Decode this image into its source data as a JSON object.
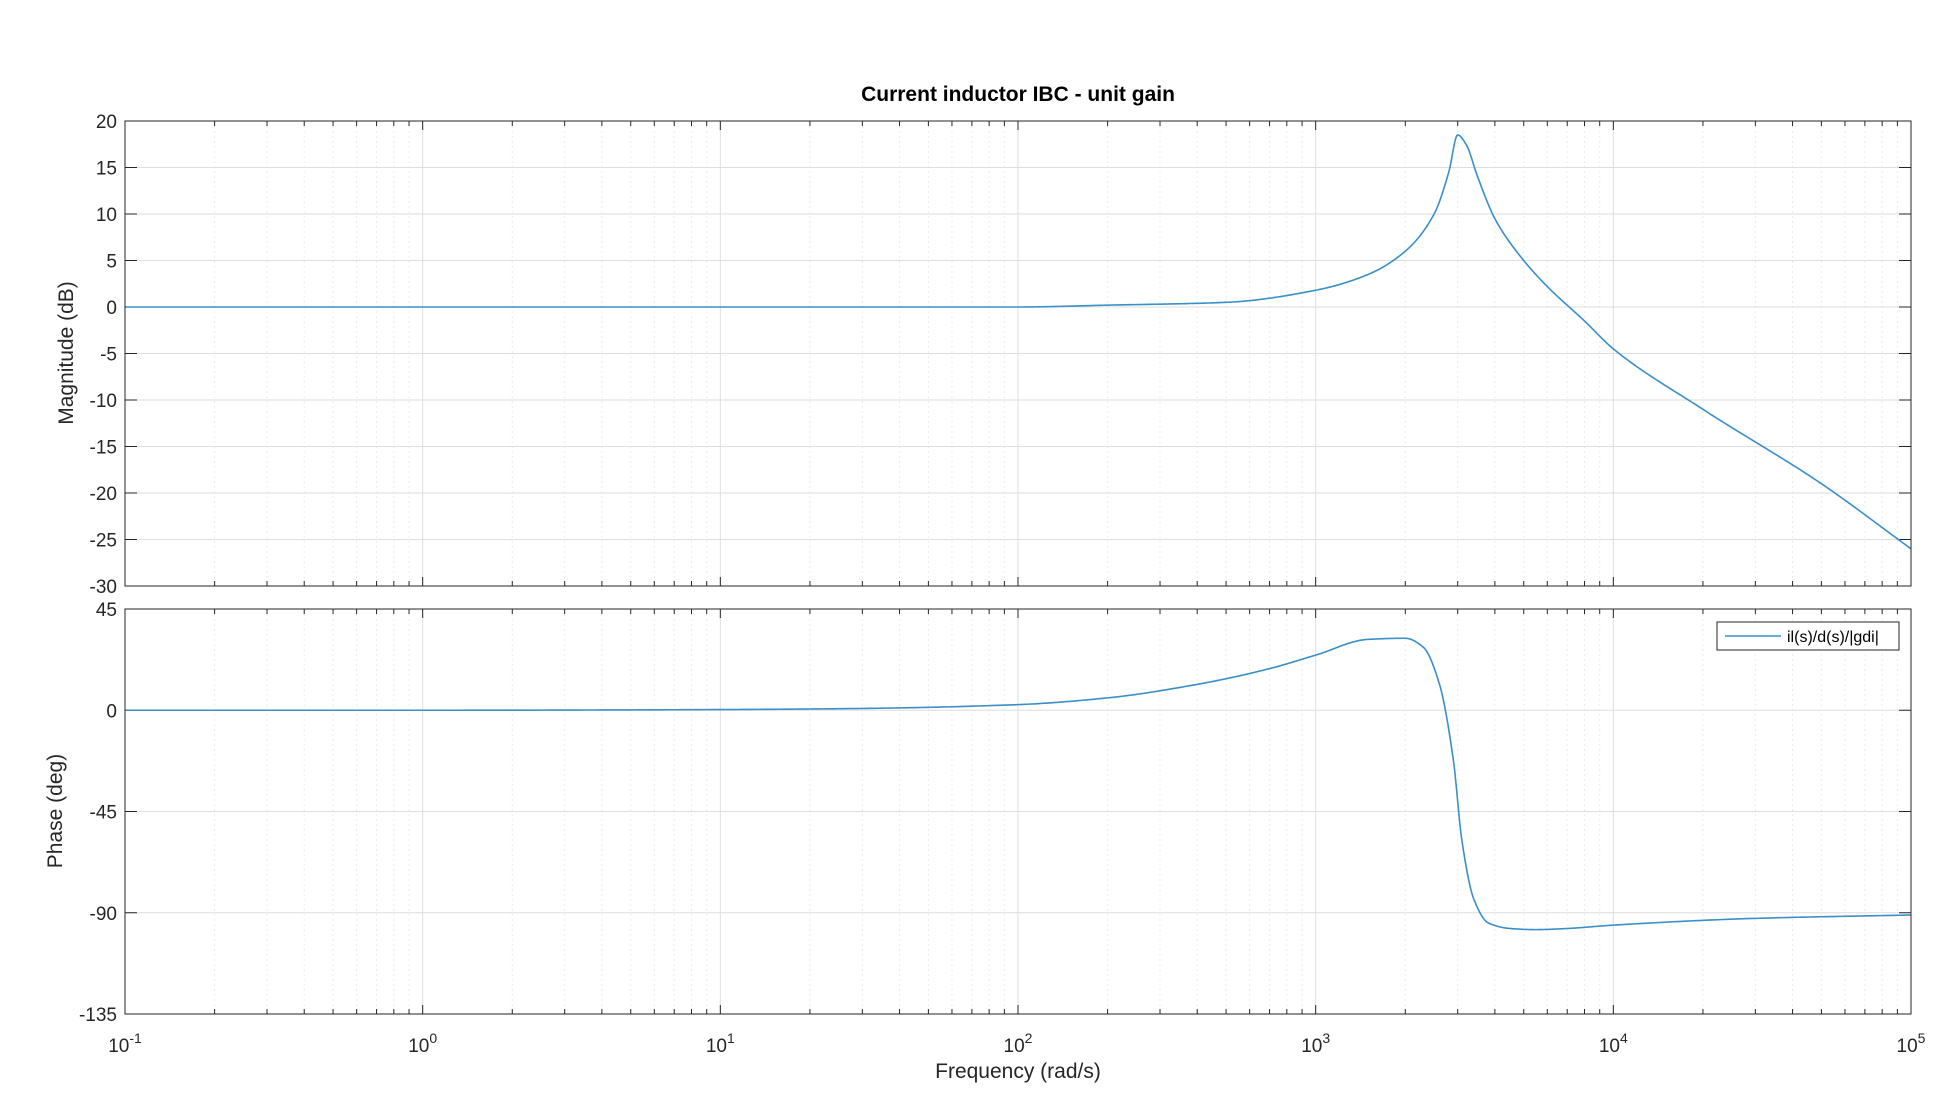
{
  "chart_data": {
    "type": "line",
    "title": "Current inductor IBC - unit gain",
    "xlabel": "Frequency  (rad/s)",
    "xscale": "log",
    "xlim": [
      0.1,
      100000
    ],
    "x_ticks": [
      {
        "base": "10",
        "exp": "-1"
      },
      {
        "base": "10",
        "exp": "0"
      },
      {
        "base": "10",
        "exp": "1"
      },
      {
        "base": "10",
        "exp": "2"
      },
      {
        "base": "10",
        "exp": "3"
      },
      {
        "base": "10",
        "exp": "4"
      },
      {
        "base": "10",
        "exp": "5"
      }
    ],
    "grid": true,
    "line_color": "#3a8fc9",
    "panels": [
      {
        "name": "magnitude",
        "ylabel": "Magnitude (dB)",
        "ylim": [
          -30,
          20
        ],
        "yticks": [
          "20",
          "15",
          "10",
          "5",
          "0",
          "-5",
          "-10",
          "-15",
          "-20",
          "-25",
          "-30"
        ],
        "x": [
          0.1,
          1,
          10,
          100,
          200,
          500,
          1000,
          1500,
          2000,
          2500,
          2800,
          3000,
          3200,
          3500,
          4000,
          5000,
          6000,
          8000,
          10000,
          20000,
          50000,
          100000
        ],
        "values": [
          0,
          0,
          0,
          0,
          0.2,
          0.5,
          1.8,
          3.5,
          6.0,
          10.0,
          14.5,
          18.5,
          17.5,
          14.0,
          9.5,
          5.0,
          2.2,
          -1.5,
          -4.5,
          -11.0,
          -19.0,
          -26.0
        ]
      },
      {
        "name": "phase",
        "ylabel": "Phase (deg)",
        "ylim": [
          -135,
          45
        ],
        "yticks": [
          "45",
          "0",
          "-45",
          "-90",
          "-135"
        ],
        "legend": {
          "position": "top-right",
          "label": "il(s)/d(s)/|gdi|"
        },
        "x": [
          0.1,
          1,
          10,
          30,
          100,
          200,
          400,
          700,
          1000,
          1500,
          2000,
          2300,
          2600,
          2900,
          3100,
          3400,
          3800,
          4500,
          5500,
          7000,
          10000,
          30000,
          100000
        ],
        "values": [
          0,
          0,
          0.3,
          0.8,
          2.5,
          5.5,
          11.5,
          18.5,
          24.5,
          31.5,
          32.0,
          28.0,
          12.0,
          -22.0,
          -58.0,
          -84.0,
          -94.5,
          -97.0,
          -97.5,
          -97.0,
          -95.5,
          -92.5,
          -91.0
        ]
      }
    ]
  }
}
